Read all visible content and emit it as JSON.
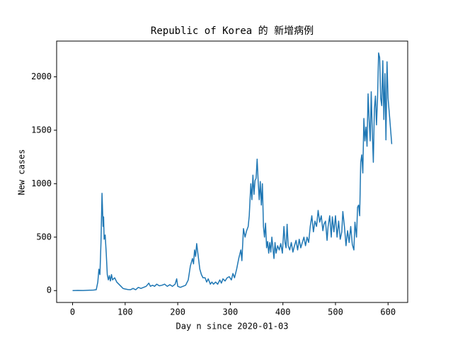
{
  "chart_data": {
    "type": "line",
    "title": "Republic of Korea 的 新增病例",
    "xlabel": "Day n since 2020-01-03",
    "ylabel": "New cases",
    "xlim": [
      -30.35,
      637.35
    ],
    "ylim": [
      -111,
      2334
    ],
    "xticks": [
      0,
      100,
      200,
      300,
      400,
      500,
      600
    ],
    "yticks": [
      0,
      500,
      1000,
      1500,
      2000
    ],
    "series": [
      {
        "color": "#1f77b4",
        "x": [
          0,
          10,
          20,
          30,
          40,
          45,
          48,
          50,
          52,
          54,
          56,
          58,
          59,
          60,
          62,
          64,
          66,
          68,
          70,
          72,
          74,
          76,
          80,
          84,
          88,
          92,
          96,
          100,
          105,
          110,
          115,
          120,
          125,
          130,
          135,
          140,
          145,
          148,
          152,
          156,
          160,
          165,
          170,
          175,
          180,
          185,
          190,
          195,
          198,
          200,
          205,
          210,
          215,
          220,
          224,
          228,
          230,
          232,
          234,
          236,
          238,
          240,
          242,
          245,
          248,
          252,
          255,
          258,
          262,
          265,
          268,
          272,
          276,
          280,
          283,
          286,
          290,
          294,
          298,
          302,
          305,
          308,
          312,
          316,
          320,
          322,
          325,
          328,
          331,
          334,
          336,
          339,
          341,
          343,
          345,
          347,
          349,
          351,
          353,
          355,
          357,
          359,
          361,
          363,
          365,
          367,
          369,
          371,
          373,
          375,
          377,
          379,
          381,
          383,
          385,
          387,
          390,
          393,
          396,
          399,
          402,
          404,
          406,
          408,
          410,
          413,
          416,
          419,
          422,
          425,
          428,
          431,
          434,
          437,
          440,
          443,
          446,
          449,
          452,
          455,
          458,
          461,
          464,
          467,
          470,
          473,
          476,
          478,
          481,
          484,
          486,
          489,
          492,
          494,
          497,
          500,
          503,
          506,
          509,
          512,
          514,
          517,
          520,
          523,
          526,
          529,
          532,
          535,
          537,
          540,
          542,
          544,
          546,
          548,
          550,
          552,
          554,
          556,
          558,
          560,
          562,
          564,
          566,
          568,
          570,
          572,
          574,
          576,
          578,
          580,
          582,
          584,
          586,
          588,
          590,
          592,
          594,
          596,
          598,
          600,
          603,
          607
        ],
        "values": [
          0,
          2,
          1,
          3,
          5,
          8,
          80,
          200,
          150,
          450,
          910,
          600,
          690,
          480,
          520,
          350,
          150,
          100,
          140,
          90,
          150,
          100,
          120,
          80,
          60,
          40,
          20,
          15,
          10,
          8,
          20,
          8,
          30,
          20,
          30,
          40,
          70,
          40,
          50,
          40,
          60,
          45,
          50,
          60,
          40,
          55,
          40,
          60,
          110,
          40,
          30,
          40,
          50,
          100,
          230,
          300,
          250,
          380,
          320,
          440,
          360,
          280,
          200,
          150,
          120,
          120,
          80,
          110,
          60,
          80,
          60,
          80,
          60,
          100,
          70,
          110,
          90,
          120,
          130,
          100,
          160,
          120,
          200,
          300,
          380,
          280,
          580,
          500,
          560,
          600,
          700,
          1000,
          850,
          1080,
          900,
          1030,
          1050,
          1230,
          1020,
          850,
          1020,
          800,
          1000,
          600,
          500,
          630,
          400,
          460,
          350,
          450,
          360,
          500,
          400,
          300,
          450,
          350,
          420,
          380,
          440,
          350,
          600,
          450,
          400,
          620,
          420,
          380,
          450,
          360,
          420,
          470,
          380,
          480,
          400,
          450,
          500,
          420,
          500,
          450,
          600,
          700,
          550,
          650,
          600,
          750,
          640,
          700,
          560,
          620,
          650,
          470,
          600,
          700,
          500,
          690,
          550,
          700,
          500,
          650,
          480,
          550,
          740,
          600,
          420,
          560,
          450,
          600,
          430,
          380,
          640,
          500,
          780,
          800,
          700,
          1200,
          1270,
          1100,
          1610,
          1400,
          1530,
          1350,
          1840,
          1600,
          1400,
          1860,
          1480,
          1200,
          1700,
          1820,
          1550,
          1800,
          2223,
          2180,
          1800,
          1730,
          2150,
          1600,
          2030,
          1410,
          2140,
          1800,
          1620,
          1370
        ]
      }
    ]
  }
}
